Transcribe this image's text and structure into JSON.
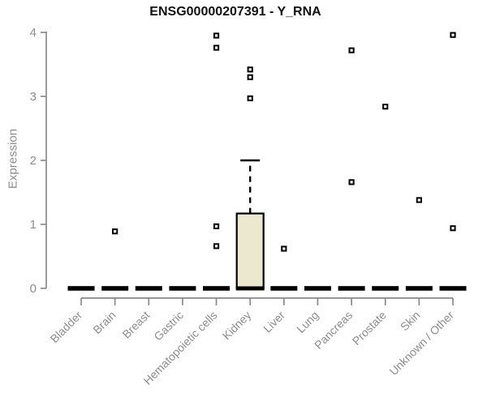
{
  "colors": {
    "background": "#ffffff",
    "title_text": "#111111",
    "axis_line": "#8a8a8a",
    "axis_text": "#8c8c8c",
    "box_fill": "#ece7cf",
    "box_stroke": "#000000",
    "outlier_fill": "#ffffff",
    "outlier_stroke": "#000000"
  },
  "chart_data": {
    "type": "boxplot",
    "title": "ENSG00000207391 - Y_RNA",
    "xlabel": "",
    "ylabel": "Expression",
    "ylim": [
      0,
      4
    ],
    "yticks": [
      0,
      1,
      2,
      3,
      4
    ],
    "grid": "off",
    "legend": "none",
    "categories": [
      "Bladder",
      "Brain",
      "Breast",
      "Gastric",
      "Hematopoietic cells",
      "Kidney",
      "Liver",
      "Lung",
      "Pancreas",
      "Prostate",
      "Skin",
      "Unknown / Other"
    ],
    "boxes": [
      {
        "category": "Bladder",
        "whisker_low": 0,
        "q1": 0,
        "median": 0,
        "q3": 0,
        "whisker_high": 0,
        "outliers": []
      },
      {
        "category": "Brain",
        "whisker_low": 0,
        "q1": 0,
        "median": 0,
        "q3": 0,
        "whisker_high": 0,
        "outliers": [
          0.89
        ]
      },
      {
        "category": "Breast",
        "whisker_low": 0,
        "q1": 0,
        "median": 0,
        "q3": 0,
        "whisker_high": 0,
        "outliers": []
      },
      {
        "category": "Gastric",
        "whisker_low": 0,
        "q1": 0,
        "median": 0,
        "q3": 0,
        "whisker_high": 0,
        "outliers": []
      },
      {
        "category": "Hematopoietic cells",
        "whisker_low": 0,
        "q1": 0,
        "median": 0,
        "q3": 0,
        "whisker_high": 0,
        "outliers": [
          0.66,
          0.97,
          3.76,
          3.95
        ]
      },
      {
        "category": "Kidney",
        "whisker_low": 0,
        "q1": 0,
        "median": 0,
        "q3": 1.17,
        "whisker_high": 2.0,
        "outliers": [
          2.97,
          3.3,
          3.42
        ]
      },
      {
        "category": "Liver",
        "whisker_low": 0,
        "q1": 0,
        "median": 0,
        "q3": 0,
        "whisker_high": 0,
        "outliers": [
          0.62
        ]
      },
      {
        "category": "Lung",
        "whisker_low": 0,
        "q1": 0,
        "median": 0,
        "q3": 0,
        "whisker_high": 0,
        "outliers": []
      },
      {
        "category": "Pancreas",
        "whisker_low": 0,
        "q1": 0,
        "median": 0,
        "q3": 0,
        "whisker_high": 0,
        "outliers": [
          1.66,
          3.72
        ]
      },
      {
        "category": "Prostate",
        "whisker_low": 0,
        "q1": 0,
        "median": 0,
        "q3": 0,
        "whisker_high": 0,
        "outliers": [
          2.84
        ]
      },
      {
        "category": "Skin",
        "whisker_low": 0,
        "q1": 0,
        "median": 0,
        "q3": 0,
        "whisker_high": 0,
        "outliers": [
          1.38
        ]
      },
      {
        "category": "Unknown / Other",
        "whisker_low": 0,
        "q1": 0,
        "median": 0,
        "q3": 0,
        "whisker_high": 0,
        "outliers": [
          0.94,
          3.96
        ]
      }
    ]
  }
}
